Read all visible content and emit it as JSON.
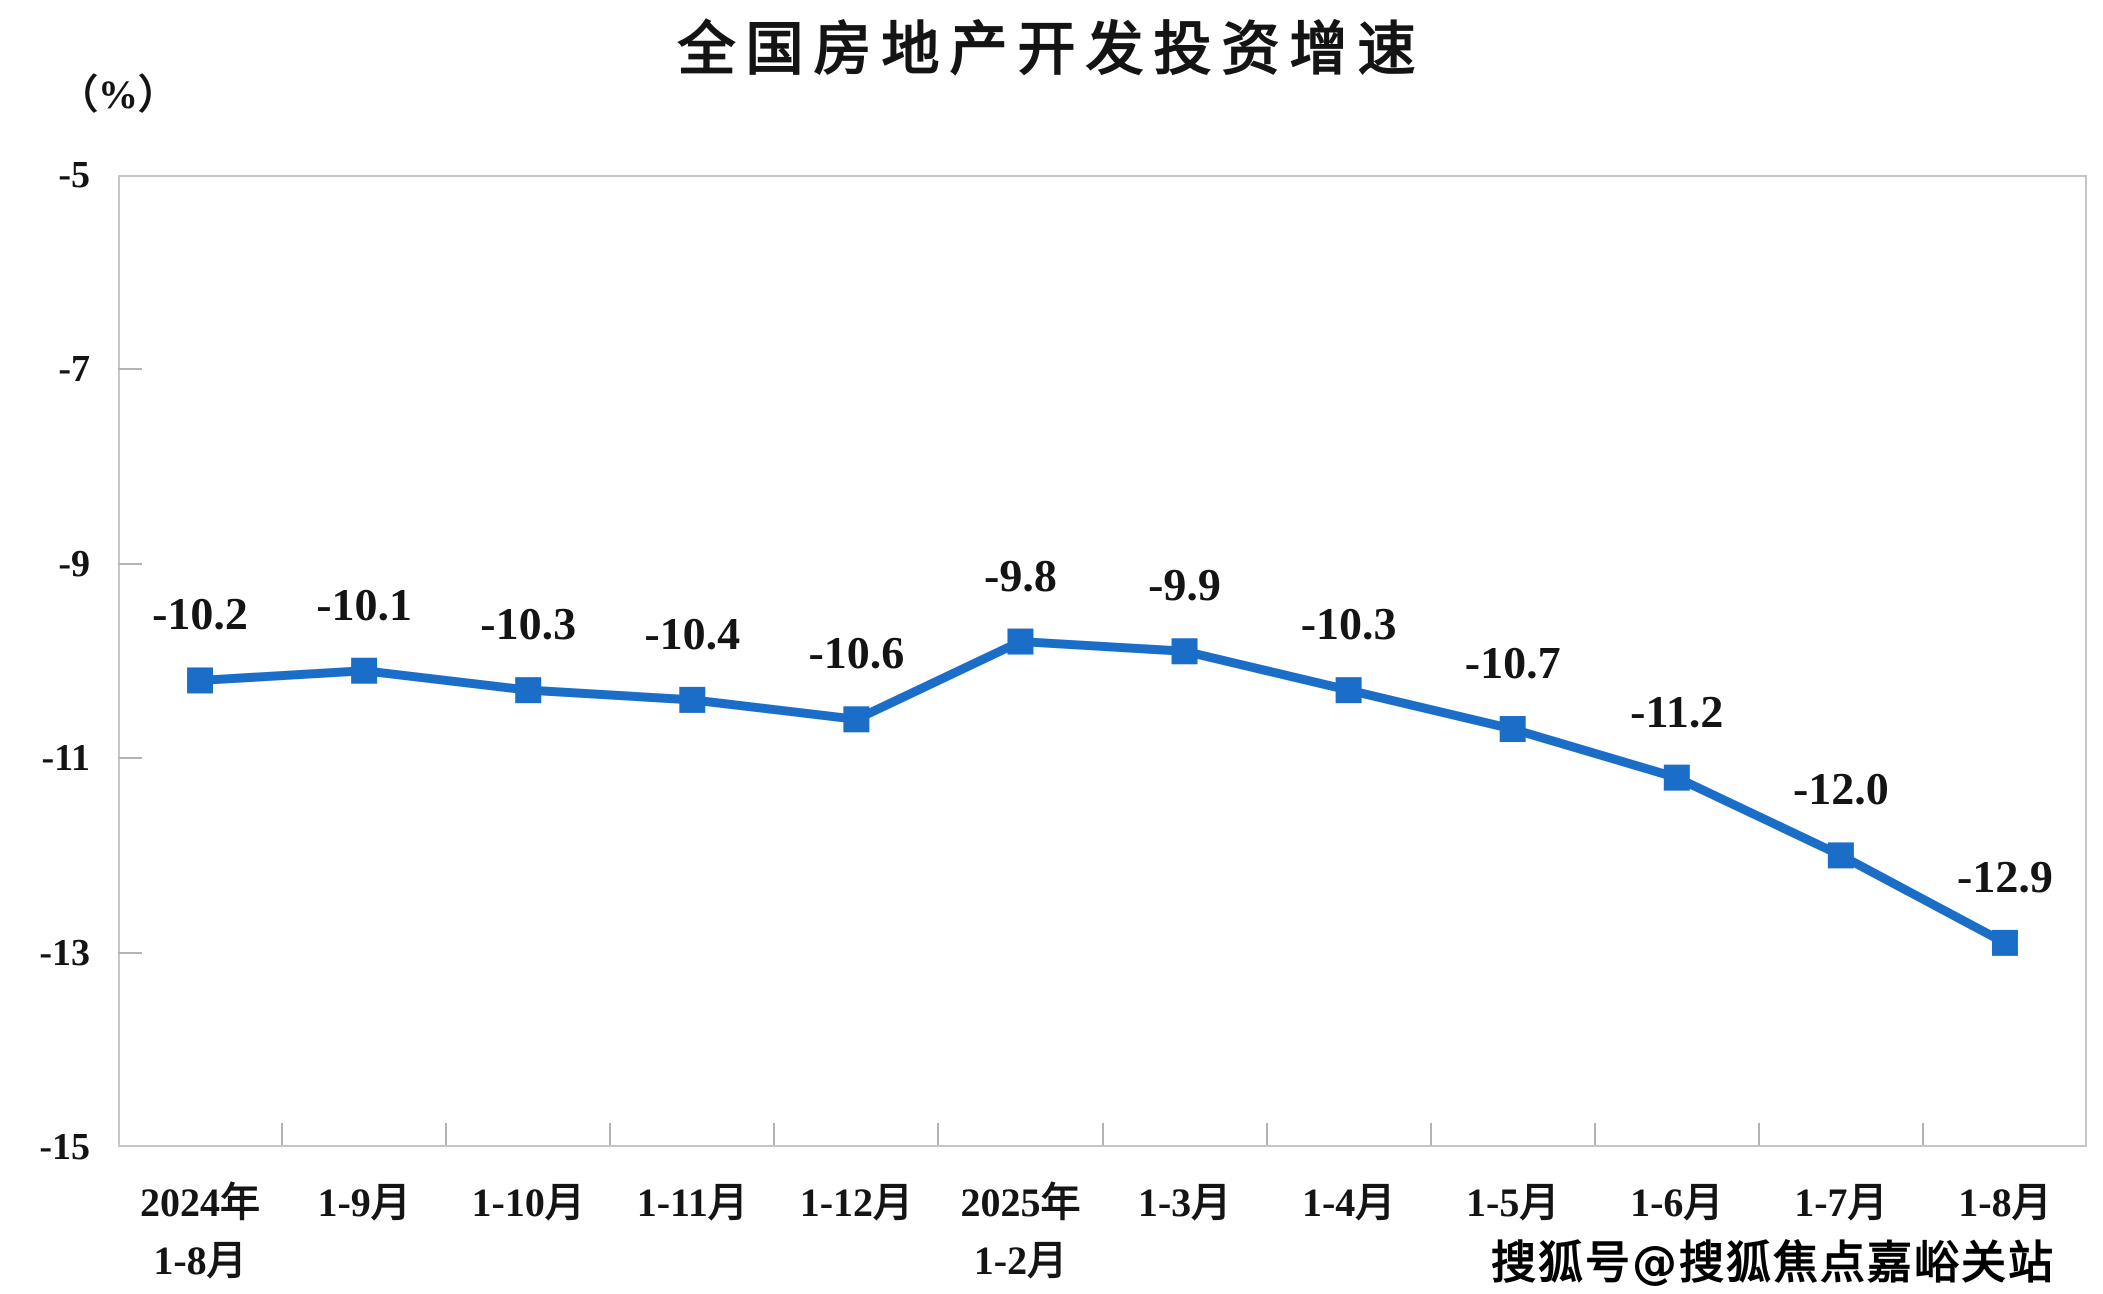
{
  "chart_data": {
    "type": "line",
    "title": "全国房地产开发投资增速",
    "unit_label": "（%）",
    "categories": [
      "2024年 1-8月",
      "1-9月",
      "1-10月",
      "1-11月",
      "1-12月",
      "2025年 1-2月",
      "1-3月",
      "1-4月",
      "1-5月",
      "1-6月",
      "1-7月",
      "1-8月"
    ],
    "category_lines": [
      [
        "2024年",
        "1-8月"
      ],
      [
        "1-9月"
      ],
      [
        "1-10月"
      ],
      [
        "1-11月"
      ],
      [
        "1-12月"
      ],
      [
        "2025年",
        "1-2月"
      ],
      [
        "1-3月"
      ],
      [
        "1-4月"
      ],
      [
        "1-5月"
      ],
      [
        "1-6月"
      ],
      [
        "1-7月"
      ],
      [
        "1-8月"
      ]
    ],
    "values": [
      -10.2,
      -10.1,
      -10.3,
      -10.4,
      -10.6,
      -9.8,
      -9.9,
      -10.3,
      -10.7,
      -11.2,
      -12.0,
      -12.9
    ],
    "data_labels": [
      "-10.2",
      "-10.1",
      "-10.3",
      "-10.4",
      "-10.6",
      "-9.8",
      "-9.9",
      "-10.3",
      "-10.7",
      "-11.2",
      "-12.0",
      "-12.9"
    ],
    "ylim": [
      -15,
      -5
    ],
    "yticks": [
      -5,
      -7,
      -9,
      -11,
      -13,
      -15
    ],
    "grid": false,
    "legend": "none",
    "line_color": "#1b6ec8",
    "marker": "square",
    "frame_color": "#c6c6c6",
    "text_color": "#141414"
  },
  "watermark": {
    "text": "搜狐号@搜狐焦点嘉峪关站"
  }
}
